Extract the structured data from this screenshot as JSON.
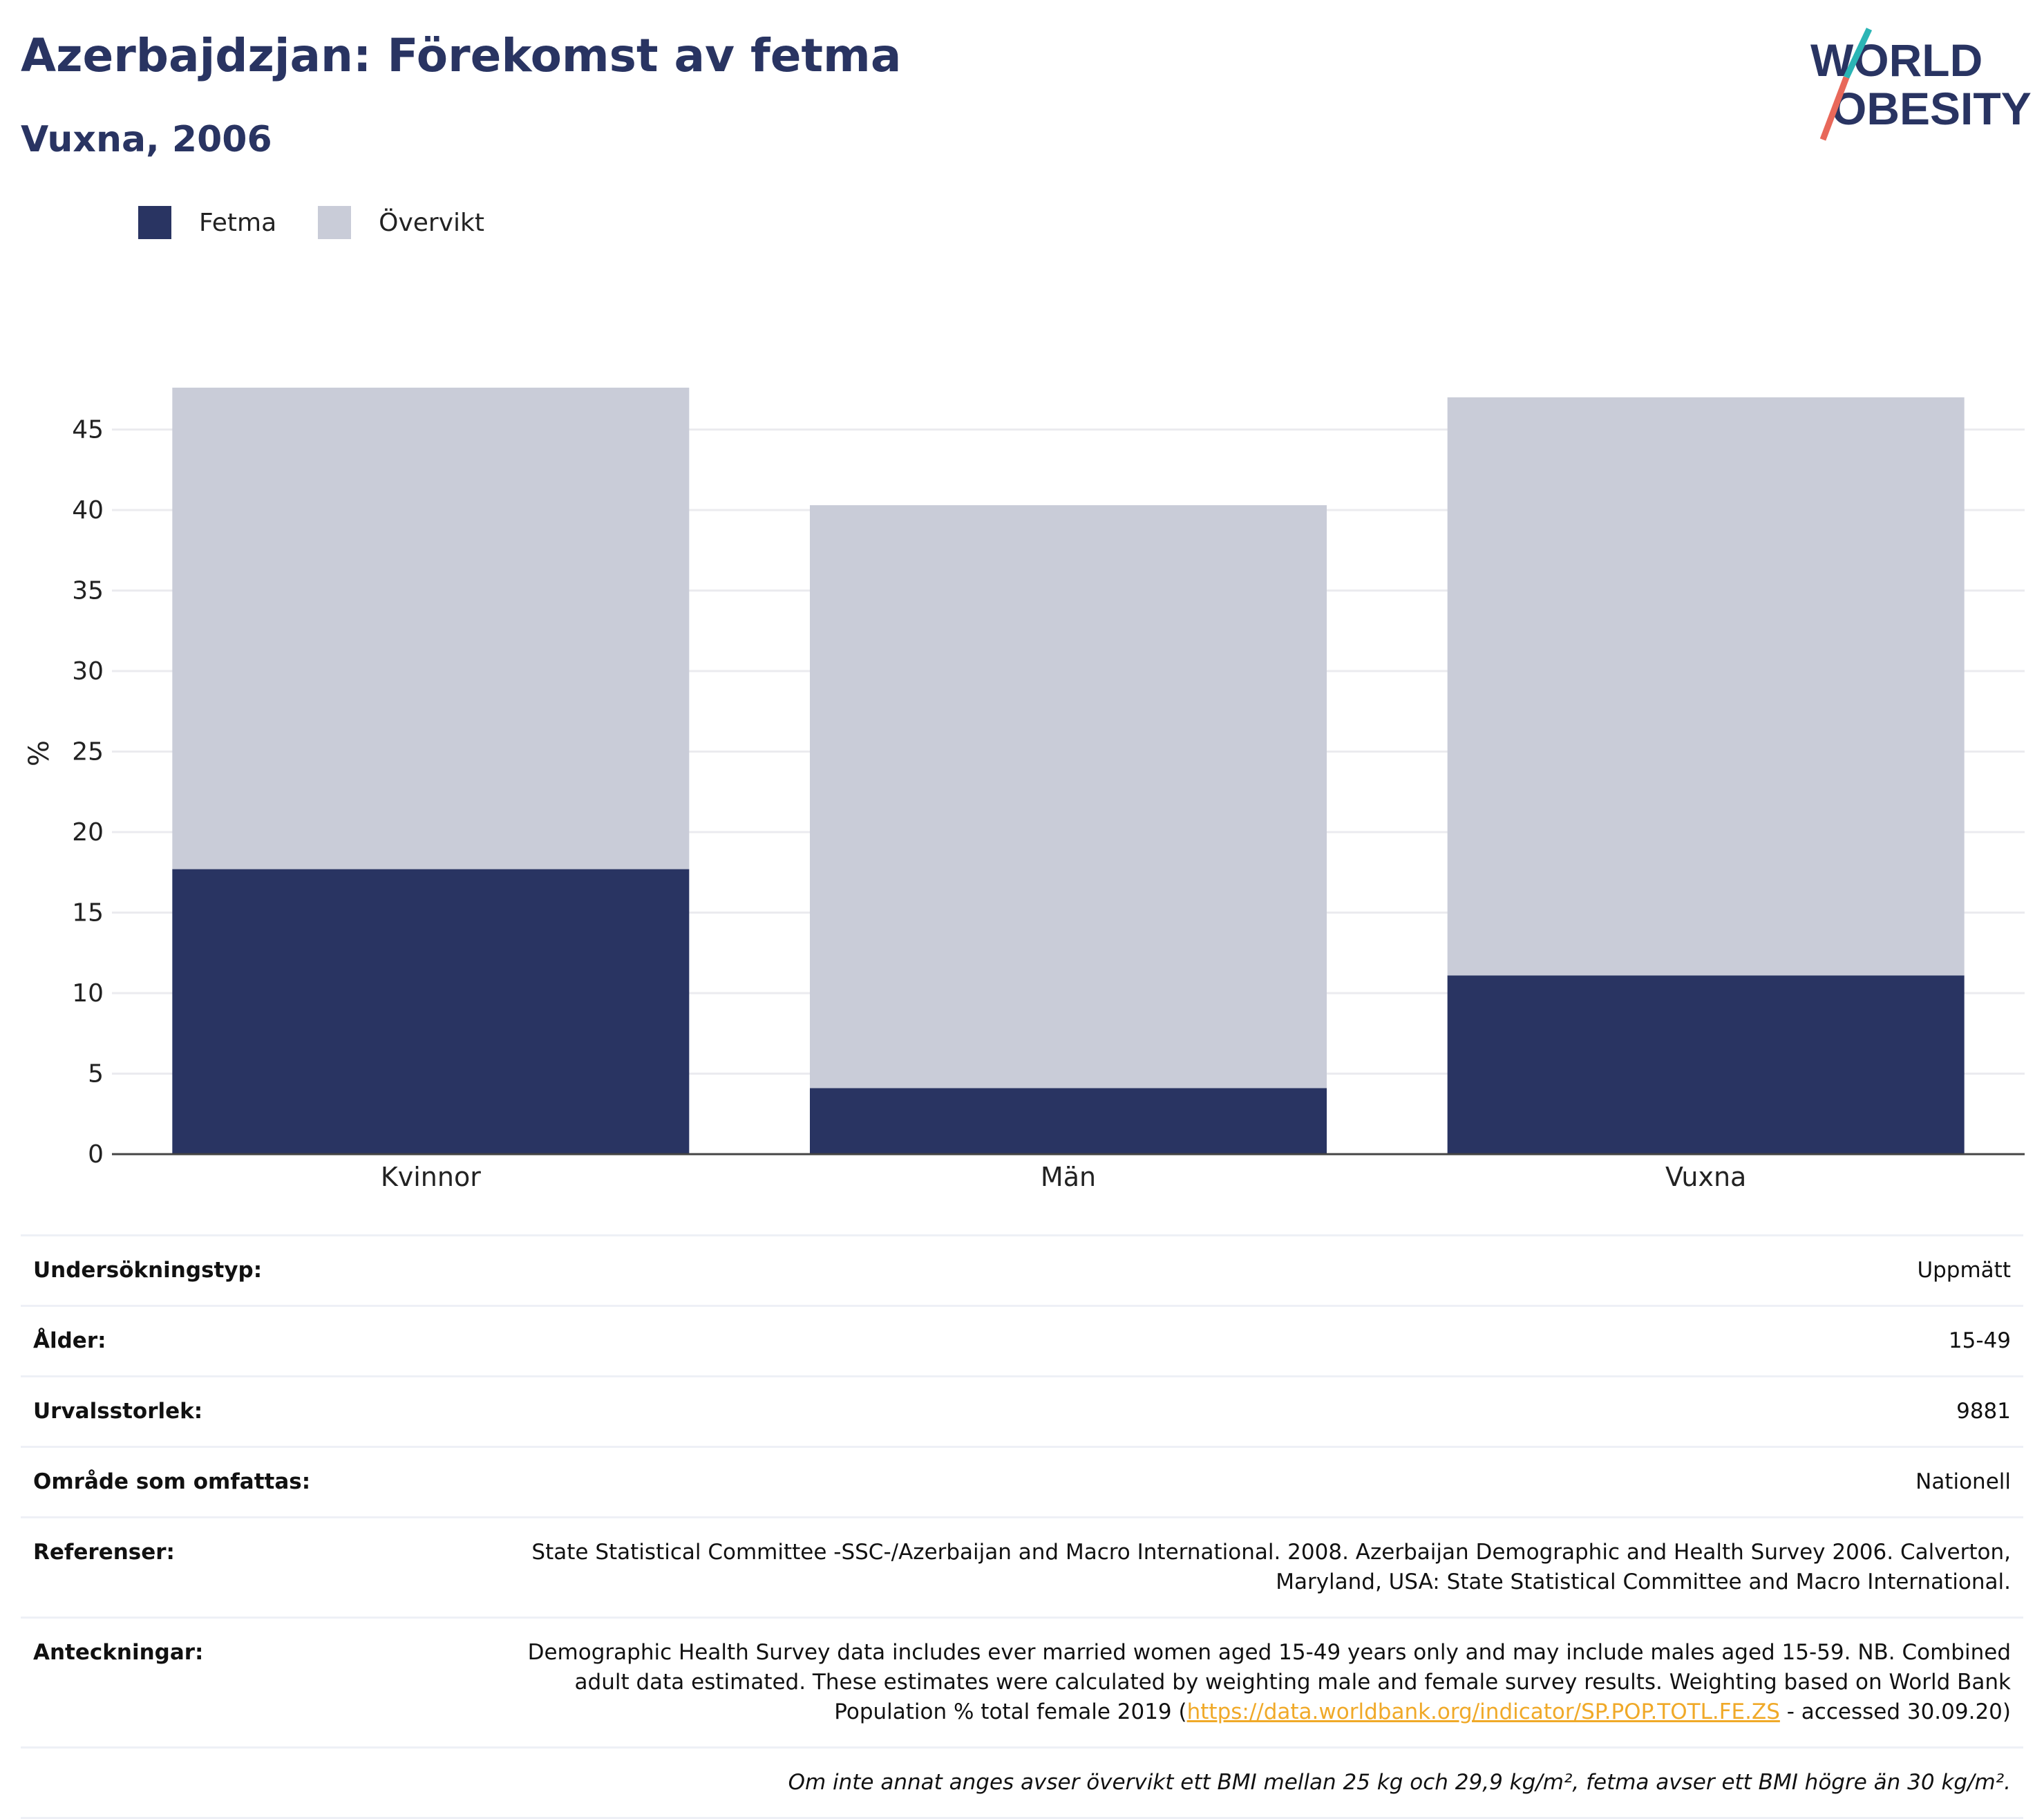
{
  "header": {
    "title": "Azerbajdzjan: Förekomst av fetma",
    "subtitle": "Vuxna, 2006"
  },
  "logo": {
    "line1": "WORLD",
    "line2": "OBESITY"
  },
  "colors": {
    "obesity": "#293462",
    "overweight": "#c9ccd8",
    "title": "#293462",
    "link": "#f0a928"
  },
  "chart_data": {
    "type": "bar",
    "stacked": true,
    "categories": [
      "Kvinnor",
      "Män",
      "Vuxna"
    ],
    "series": [
      {
        "name": "Fetma",
        "values": [
          17.7,
          4.1,
          11.1
        ],
        "color": "#293462"
      },
      {
        "name": "Övervikt",
        "values": [
          29.9,
          36.2,
          35.9
        ],
        "color": "#c9ccd8"
      }
    ],
    "ylabel": "%",
    "ylim": [
      0,
      47.6
    ],
    "yticks": [
      0,
      5,
      10,
      15,
      20,
      25,
      30,
      35,
      40,
      45
    ],
    "grid": true,
    "legend": "top-left"
  },
  "info": {
    "rows": [
      {
        "label": "Undersökningstyp:",
        "value": "Uppmätt"
      },
      {
        "label": "Ålder:",
        "value": "15-49"
      },
      {
        "label": "Urvalsstorlek:",
        "value": "9881"
      },
      {
        "label": "Område som omfattas:",
        "value": "Nationell"
      },
      {
        "label": "Referenser:",
        "value": "State Statistical Committee -SSC-/Azerbaijan and Macro International. 2008. Azerbaijan Demographic and Health Survey 2006. Calverton, Maryland, USA: State Statistical Committee and Macro International."
      }
    ],
    "notes": {
      "label": "Anteckningar:",
      "text_before": "Demographic Health Survey data includes ever married women aged 15-49 years only and may include males aged 15-59. NB. Combined adult data estimated. These estimates were calculated by weighting male and female survey results. Weighting based on World Bank Population % total female 2019 (",
      "link": "https://data.worldbank.org/indicator/SP.POP.TOTL.FE.ZS",
      "text_after": " - accessed 30.09.20)"
    },
    "footnote": "Om inte annat anges avser övervikt ett BMI mellan 25 kg och 29,9 kg/m², fetma avser ett BMI högre än 30 kg/m²."
  }
}
